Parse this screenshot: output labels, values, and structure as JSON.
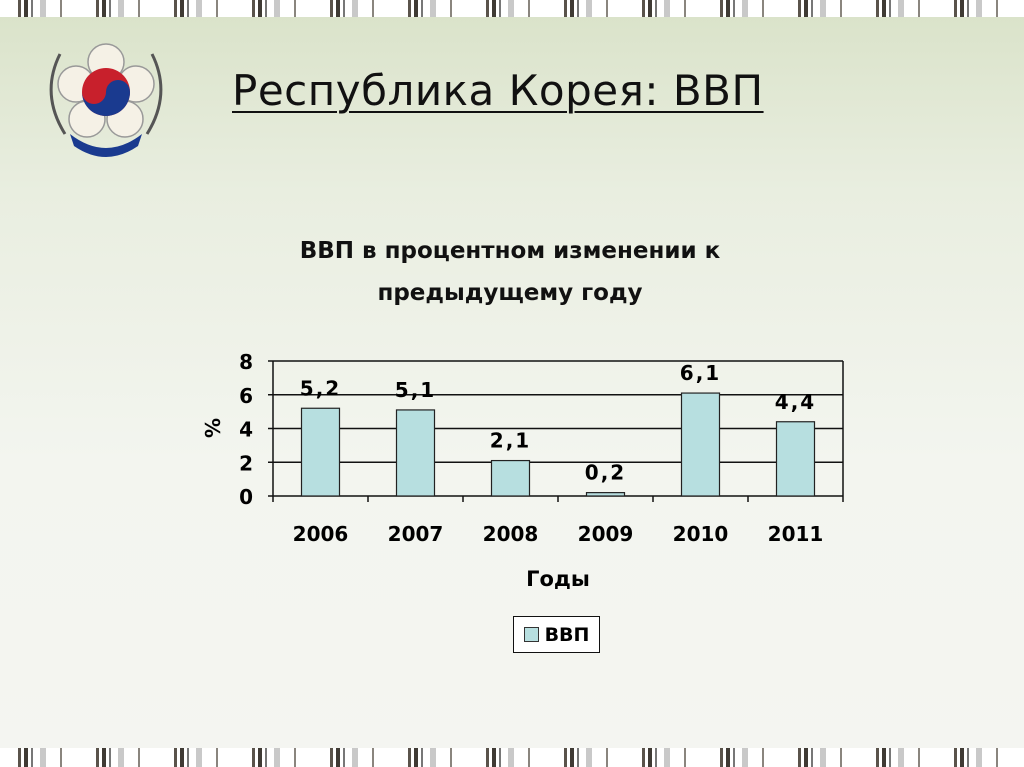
{
  "slide": {
    "title": "Республика Корея: ВВП"
  },
  "chart_data": {
    "type": "bar",
    "title": "ВВП в процентном изменении к предыдущему году",
    "title_lines": [
      "ВВП в процентном изменении к",
      "предыдущему году"
    ],
    "categories": [
      "2006",
      "2007",
      "2008",
      "2009",
      "2010",
      "2011"
    ],
    "series": [
      {
        "name": "ВВП",
        "values": [
          5.2,
          5.1,
          2.1,
          0.2,
          6.1,
          4.4
        ],
        "color": "#b7dfe0"
      }
    ],
    "data_labels": [
      "5,2",
      "5,1",
      "2,1",
      "0,2",
      "6,1",
      "4,4"
    ],
    "xlabel": "Годы",
    "ylabel": "%",
    "ylim": [
      0,
      8
    ],
    "yticks": [
      0,
      2,
      4,
      6,
      8
    ],
    "grid": true,
    "legend": "bottom"
  }
}
